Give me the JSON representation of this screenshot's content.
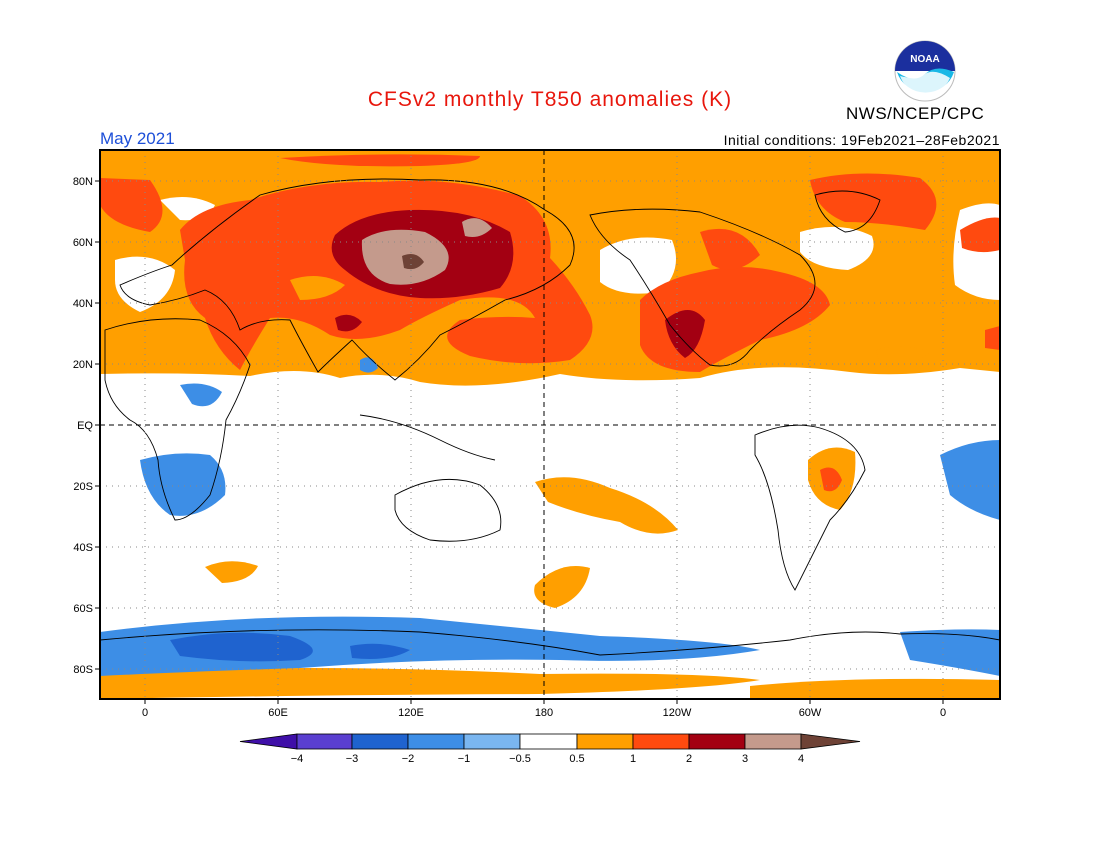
{
  "title": "CFSv2 monthly T850 anomalies (K)",
  "month": "May 2021",
  "initial_conditions": "Initial conditions: 19Feb2021–28Feb2021",
  "agency": "NWS/NCEP/CPC",
  "logo_text": "NOAA",
  "colors": {
    "title": "#e8160c",
    "month": "#1d4fd8",
    "missing": "#ffffff",
    "bins": [
      "#3f0fa8",
      "#5a3fd0",
      "#1f63cf",
      "#3d8ee6",
      "#7ab6f0",
      "#ffffff",
      "#ff9f00",
      "#ff4a0f",
      "#a30012",
      "#c49a8c",
      "#6e4236"
    ]
  },
  "x_axis": {
    "ticks": [
      "0",
      "60E",
      "120E",
      "180",
      "120W",
      "60W",
      "0"
    ]
  },
  "y_axis": {
    "ticks": [
      "80N",
      "60N",
      "40N",
      "20N",
      "EQ",
      "20S",
      "40S",
      "60S",
      "80S"
    ]
  },
  "colorbar": {
    "labels": [
      "−4",
      "−3",
      "−2",
      "−1",
      "−0.5",
      "0.5",
      "1",
      "2",
      "3",
      "4"
    ]
  }
}
